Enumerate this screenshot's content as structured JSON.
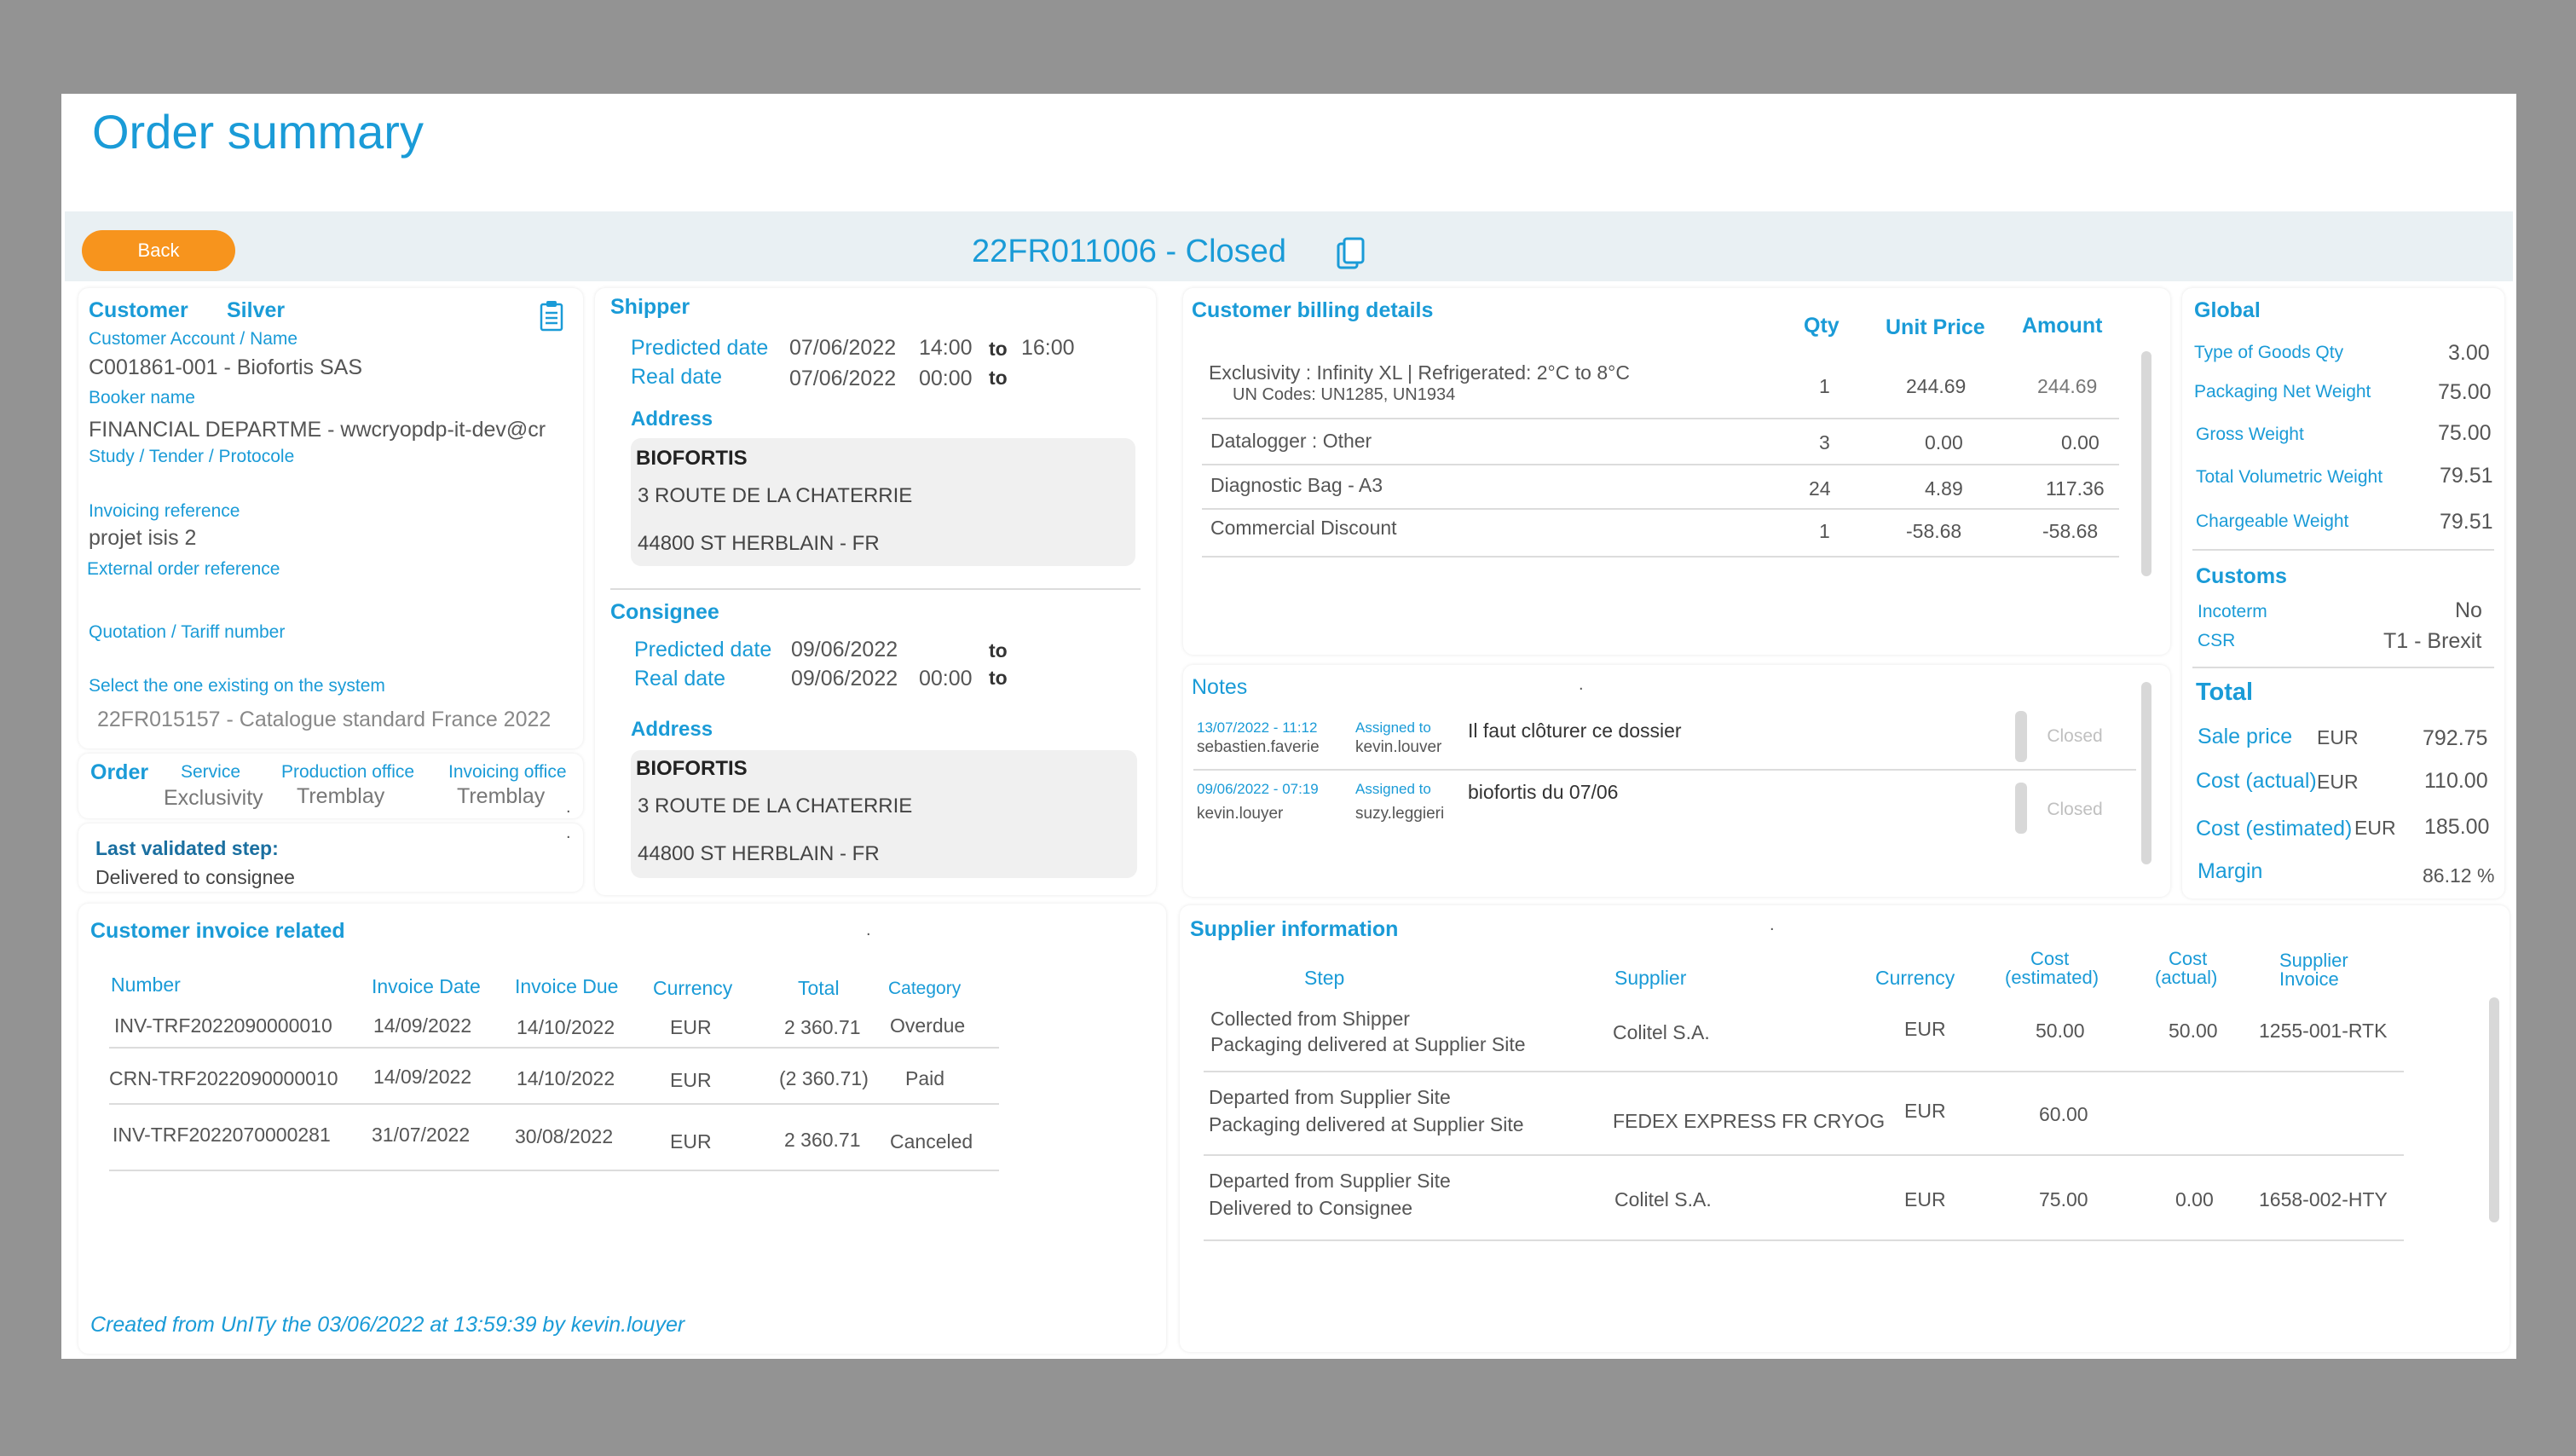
{
  "page": {
    "title": "Order summary",
    "back_label": "Back",
    "order_title": "22FR011006 - Closed"
  },
  "customer": {
    "label": "Customer",
    "tier": "Silver",
    "account_label": "Customer Account / Name",
    "account_value": "C001861-001 - Biofortis SAS",
    "booker_label": "Booker name",
    "booker_value": "FINANCIAL DEPARTME  - wwcryopdp-it-dev@cr",
    "study_label": "Study / Tender / Protocole",
    "invoicing_ref_label": "Invoicing reference",
    "invoicing_ref_value": "projet isis 2",
    "external_ref_label": "External order reference",
    "quotation_label": "Quotation / Tariff number",
    "select_label": "Select the one existing on the system",
    "select_value": "22FR015157 - Catalogue standard France 2022"
  },
  "order": {
    "label": "Order",
    "service_label": "Service",
    "service_value": "Exclusivity",
    "production_label": "Production office",
    "production_value": "Tremblay",
    "invoicing_label": "Invoicing office",
    "invoicing_value": "Tremblay",
    "dot": "."
  },
  "last_step": {
    "label": "Last validated step:",
    "value": "Delivered to consignee",
    "dot": "."
  },
  "shipper": {
    "label": "Shipper",
    "predicted_label": "Predicted date",
    "predicted_date": "07/06/2022",
    "predicted_from": "14:00",
    "to": "to",
    "predicted_to": "16:00",
    "real_label": "Real date",
    "real_date": "07/06/2022",
    "real_time": "00:00",
    "address_label": "Address",
    "name": "BIOFORTIS",
    "street": "3 ROUTE DE LA CHATERRIE",
    "city": "44800 ST HERBLAIN - FR"
  },
  "consignee": {
    "label": "Consignee",
    "predicted_label": "Predicted date",
    "predicted_date": "09/06/2022",
    "to": "to",
    "real_label": "Real date",
    "real_date": "09/06/2022",
    "real_time": "00:00",
    "address_label": "Address",
    "name": "BIOFORTIS",
    "street": "3 ROUTE DE LA CHATERRIE",
    "city": "44800 ST HERBLAIN - FR"
  },
  "billing": {
    "title": "Customer billing details",
    "headers": {
      "qty": "Qty",
      "unit_price": "Unit Price",
      "amount": "Amount"
    },
    "rows": [
      {
        "desc": "Exclusivity : Infinity XL  |  Refrigerated: 2°C to 8°C",
        "sub": "UN Codes: UN1285, UN1934",
        "qty": "1",
        "unit": "244.69",
        "amount": "244.69"
      },
      {
        "desc": "Datalogger : Other",
        "qty": "3",
        "unit": "0.00",
        "amount": "0.00"
      },
      {
        "desc": "Diagnostic Bag - A3",
        "qty": "24",
        "unit": "4.89",
        "amount": "117.36"
      },
      {
        "desc": "Commercial Discount",
        "qty": "1",
        "unit": "-58.68",
        "amount": "-58.68"
      }
    ]
  },
  "notes": {
    "title": "Notes",
    "dot": ".",
    "items": [
      {
        "date": "13/07/2022 - 11:12",
        "author": "sebastien.faverie",
        "assigned_label": "Assigned to",
        "assigned": "kevin.louver",
        "text": "Il faut clôturer ce dossier",
        "status": "Closed"
      },
      {
        "date": "09/06/2022 - 07:19",
        "author": "kevin.louyer",
        "assigned_label": "Assigned to",
        "assigned": "suzy.leggieri",
        "text": "biofortis du 07/06",
        "status": "Closed"
      }
    ]
  },
  "global": {
    "title": "Global",
    "rows": [
      {
        "label": "Type of Goods Qty",
        "value": "3.00"
      },
      {
        "label": "Packaging Net Weight",
        "value": "75.00"
      },
      {
        "label": "Gross Weight",
        "value": "75.00"
      },
      {
        "label": "Total Volumetric Weight",
        "value": "79.51"
      },
      {
        "label": "Chargeable Weight",
        "value": "79.51"
      }
    ]
  },
  "customs": {
    "title": "Customs",
    "incoterm_label": "Incoterm",
    "incoterm_value": "No",
    "csr_label": "CSR",
    "csr_value": "T1  - Brexit"
  },
  "total": {
    "title": "Total",
    "rows": [
      {
        "label": "Sale price",
        "currency": "EUR",
        "value": "792.75"
      },
      {
        "label": "Cost (actual)",
        "currency": "EUR",
        "value": "110.00"
      },
      {
        "label": "Cost (estimated)",
        "currency": "EUR",
        "value": "185.00"
      }
    ],
    "margin_label": "Margin",
    "margin_value": "86.12 %"
  },
  "invoices": {
    "title": "Customer invoice related",
    "dot": ".",
    "headers": {
      "number": "Number",
      "date": "Invoice Date",
      "due": "Invoice Due",
      "currency": "Currency",
      "total": "Total",
      "category": "Category"
    },
    "rows": [
      {
        "number": "INV-TRF2022090000010",
        "date": "14/09/2022",
        "due": "14/10/2022",
        "currency": "EUR",
        "total": "2 360.71",
        "category": "Overdue"
      },
      {
        "number": "CRN-TRF2022090000010",
        "date": "14/09/2022",
        "due": "14/10/2022",
        "currency": "EUR",
        "total": "(2 360.71)",
        "category": "Paid"
      },
      {
        "number": "INV-TRF2022070000281",
        "date": "31/07/2022",
        "due": "30/08/2022",
        "currency": "EUR",
        "total": "2 360.71",
        "category": "Canceled"
      }
    ]
  },
  "supplier": {
    "title": "Supplier information",
    "dot": ".",
    "headers": {
      "step": "Step",
      "supplier": "Supplier",
      "currency": "Currency",
      "cost_est_1": "Cost",
      "cost_est_2": "(estimated)",
      "cost_act_1": "Cost",
      "cost_act_2": "(actual)",
      "inv_1": "Supplier",
      "inv_2": "Invoice"
    },
    "rows": [
      {
        "step1": "Collected from Shipper",
        "step2": "Packaging delivered at Supplier Site",
        "supplier": "Colitel S.A.",
        "currency": "EUR",
        "cost_est": "50.00",
        "cost_act": "50.00",
        "invoice": "1255-001-RTK"
      },
      {
        "step1": "Departed from Supplier Site",
        "step2": "Packaging delivered at Supplier Site",
        "supplier": "FEDEX EXPRESS FR CRYOG",
        "currency": "EUR",
        "cost_est": "60.00",
        "cost_act": "",
        "invoice": ""
      },
      {
        "step1": "Departed from Supplier Site",
        "step2": "Delivered to Consignee",
        "supplier": "Colitel S.A.",
        "currency": "EUR",
        "cost_est": "75.00",
        "cost_act": "0.00",
        "invoice": "1658-002-HTY"
      }
    ]
  },
  "footer": {
    "created": "Created from UnITy the 03/06/2022 at 13:59:39 by kevin.louyer"
  }
}
